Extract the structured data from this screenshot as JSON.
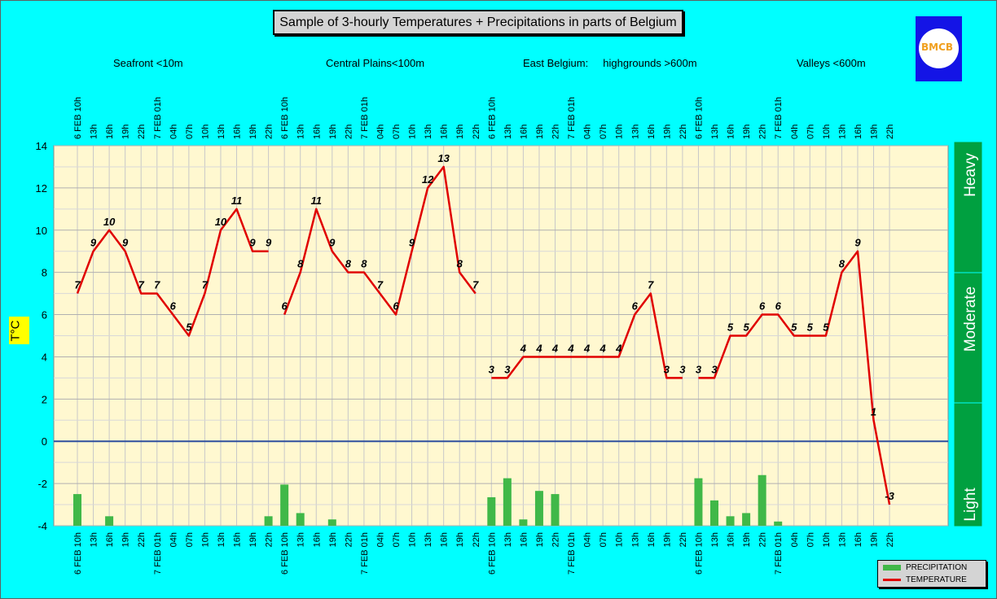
{
  "title": "Sample of 3-hourly Temperatures + Precipitations in parts of Belgium",
  "regions": [
    {
      "label": "Seafront <10m"
    },
    {
      "label": "Central Plains<100m"
    },
    {
      "label": "East Belgium:     highgrounds >600m"
    },
    {
      "label": "Valleys <600m"
    }
  ],
  "logo_text": "BMCB",
  "intensity_labels": [
    "Heavy",
    "Moderate",
    "Light"
  ],
  "colors": {
    "background": "#00FFFF",
    "plot": "#FFF8D0",
    "temperature": "#E00000",
    "precipitation": "#40B848",
    "intensity_bar": "#00A040",
    "zero_line": "#2E4E9E"
  },
  "chart_data": {
    "type": "line",
    "ylabel": "T°C",
    "ylim": [
      -4,
      14
    ],
    "yticks": [
      -4,
      -2,
      0,
      2,
      4,
      6,
      8,
      10,
      12,
      14
    ],
    "grid": true,
    "legend_position": "bottom-right",
    "x_labels": [
      "6 FEB 10h",
      "13h",
      "16h",
      "19h",
      "22h",
      "7 FEB 01h",
      "04h",
      "07h",
      "10h",
      "13h",
      "16h",
      "19h",
      "22h",
      "6 FEB 10h",
      "13h",
      "16h",
      "19h",
      "22h",
      "7 FEB 01h",
      "04h",
      "07h",
      "10h",
      "13h",
      "16h",
      "19h",
      "22h",
      "6 FEB 10h",
      "13h",
      "16h",
      "19h",
      "22h",
      "7 FEB 01h",
      "04h",
      "07h",
      "10h",
      "13h",
      "16h",
      "19h",
      "22h",
      "6 FEB 10h",
      "13h",
      "16h",
      "19h",
      "22h",
      "7 FEB 01h",
      "04h",
      "07h",
      "10h",
      "13h",
      "16h",
      "19h",
      "22h"
    ],
    "series": [
      {
        "name": "TEMPERATURE",
        "segments": [
          [
            7,
            9,
            10,
            9,
            7,
            7,
            6,
            5,
            7,
            10,
            11,
            9,
            9
          ],
          [
            6,
            8,
            11,
            9,
            8,
            8,
            7,
            6,
            9,
            12,
            13,
            8,
            7
          ],
          [
            3,
            3,
            4,
            4,
            4,
            4,
            4,
            4,
            4,
            6,
            7,
            3,
            3
          ],
          [
            3,
            3,
            5,
            5,
            6,
            6,
            5,
            5,
            5,
            8,
            9,
            1,
            -3
          ]
        ]
      },
      {
        "name": "PRECIPITATION",
        "values": [
          -2.5,
          null,
          -3.55,
          null,
          null,
          null,
          null,
          null,
          null,
          null,
          null,
          null,
          -3.55,
          -2.05,
          -3.4,
          null,
          -3.7,
          null,
          null,
          null,
          null,
          null,
          null,
          null,
          null,
          null,
          -2.65,
          -1.75,
          -3.7,
          -2.35,
          -2.5,
          null,
          null,
          null,
          null,
          null,
          null,
          null,
          null,
          -1.75,
          -2.8,
          -3.55,
          -3.4,
          -1.6,
          -3.8,
          null,
          null,
          null,
          null,
          null,
          null,
          null
        ]
      }
    ]
  }
}
